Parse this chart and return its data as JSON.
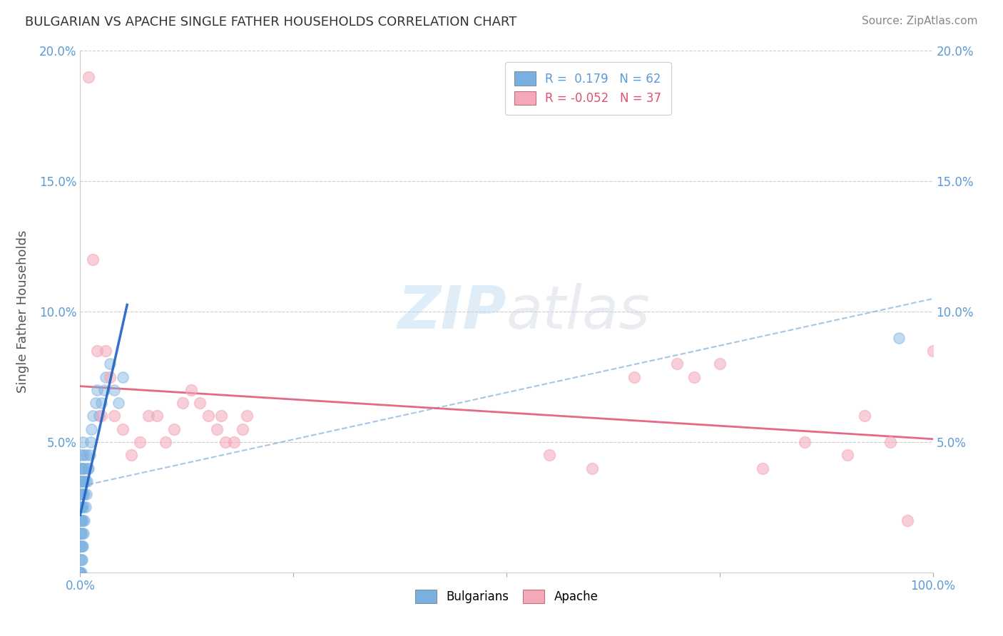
{
  "title": "BULGARIAN VS APACHE SINGLE FATHER HOUSEHOLDS CORRELATION CHART",
  "source": "Source: ZipAtlas.com",
  "ylabel": "Single Father Households",
  "watermark": "ZIPatlas",
  "legend_entries": [
    {
      "label": "R =  0.179   N = 62",
      "color": "#aac4e8"
    },
    {
      "label": "R = -0.052   N = 37",
      "color": "#f4a8b8"
    }
  ],
  "legend_labels_bottom": [
    "Bulgarians",
    "Apache"
  ],
  "xlim": [
    0.0,
    1.0
  ],
  "ylim": [
    0.0,
    0.2
  ],
  "blue_scatter_color": "#7ab0e0",
  "pink_scatter_color": "#f4a8b8",
  "trendline_blue_solid": "#2060c0",
  "trendline_blue_dashed": "#90b8e0",
  "trendline_pink_color": "#e05070",
  "grid_color": "#c8c8c8",
  "tick_color": "#5b9bd5",
  "bg_color": "#ffffff",
  "bulgarian_x": [
    0.0,
    0.0,
    0.0,
    0.0,
    0.0,
    0.0,
    0.0,
    0.0,
    0.0,
    0.0,
    0.001,
    0.001,
    0.001,
    0.001,
    0.001,
    0.001,
    0.001,
    0.001,
    0.001,
    0.001,
    0.002,
    0.002,
    0.002,
    0.002,
    0.002,
    0.002,
    0.002,
    0.002,
    0.003,
    0.003,
    0.003,
    0.003,
    0.003,
    0.004,
    0.004,
    0.004,
    0.004,
    0.005,
    0.005,
    0.005,
    0.006,
    0.006,
    0.007,
    0.007,
    0.008,
    0.009,
    0.01,
    0.011,
    0.012,
    0.013,
    0.015,
    0.018,
    0.02,
    0.022,
    0.025,
    0.028,
    0.03,
    0.035,
    0.04,
    0.045,
    0.05,
    0.96
  ],
  "bulgarian_y": [
    0.0,
    0.0,
    0.0,
    0.005,
    0.01,
    0.015,
    0.02,
    0.025,
    0.03,
    0.035,
    0.0,
    0.005,
    0.01,
    0.015,
    0.02,
    0.025,
    0.03,
    0.035,
    0.04,
    0.045,
    0.005,
    0.01,
    0.015,
    0.02,
    0.025,
    0.03,
    0.035,
    0.04,
    0.01,
    0.02,
    0.03,
    0.04,
    0.05,
    0.015,
    0.025,
    0.035,
    0.045,
    0.02,
    0.03,
    0.04,
    0.025,
    0.035,
    0.03,
    0.045,
    0.035,
    0.04,
    0.04,
    0.045,
    0.05,
    0.055,
    0.06,
    0.065,
    0.07,
    0.06,
    0.065,
    0.07,
    0.075,
    0.08,
    0.07,
    0.065,
    0.075,
    0.09
  ],
  "apache_x": [
    0.01,
    0.015,
    0.02,
    0.025,
    0.03,
    0.035,
    0.04,
    0.05,
    0.06,
    0.07,
    0.08,
    0.09,
    0.1,
    0.11,
    0.12,
    0.13,
    0.14,
    0.15,
    0.16,
    0.165,
    0.17,
    0.18,
    0.19,
    0.195,
    0.55,
    0.6,
    0.65,
    0.7,
    0.72,
    0.75,
    0.8,
    0.85,
    0.9,
    0.92,
    0.95,
    0.97,
    1.0
  ],
  "apache_y": [
    0.19,
    0.12,
    0.085,
    0.06,
    0.085,
    0.075,
    0.06,
    0.055,
    0.045,
    0.05,
    0.06,
    0.06,
    0.05,
    0.055,
    0.065,
    0.07,
    0.065,
    0.06,
    0.055,
    0.06,
    0.05,
    0.05,
    0.055,
    0.06,
    0.045,
    0.04,
    0.075,
    0.08,
    0.075,
    0.08,
    0.04,
    0.05,
    0.045,
    0.06,
    0.05,
    0.02,
    0.085
  ]
}
